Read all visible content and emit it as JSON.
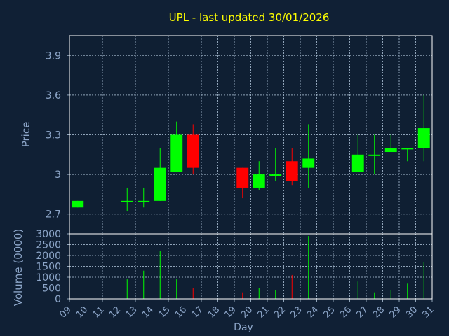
{
  "chart_data": {
    "type": "candlestick",
    "title": "UPL - last updated 30/01/2026",
    "xlabel": "Day",
    "price_panel": {
      "ylabel": "Price",
      "ylim": [
        2.55,
        4.05
      ],
      "y_ticks": [
        "2.7",
        "3",
        "3.3",
        "3.6",
        "3.9"
      ],
      "y_tick_values": [
        2.7,
        3.0,
        3.3,
        3.6,
        3.9
      ]
    },
    "volume_panel": {
      "ylabel": "Volume (0000)",
      "ylim": [
        0,
        3000
      ],
      "y_ticks": [
        "0",
        "500",
        "1000",
        "1500",
        "2000",
        "2500",
        "3000"
      ],
      "y_tick_values": [
        0,
        500,
        1000,
        1500,
        2000,
        2500,
        3000
      ]
    },
    "x_ticks": [
      "09",
      "10",
      "11",
      "12",
      "13",
      "14",
      "15",
      "16",
      "17",
      "18",
      "19",
      "20",
      "21",
      "22",
      "23",
      "24",
      "25",
      "26",
      "27",
      "28",
      "29",
      "30",
      "31"
    ],
    "x_tick_values": [
      9,
      10,
      11,
      12,
      13,
      14,
      15,
      16,
      17,
      18,
      19,
      20,
      21,
      22,
      23,
      24,
      25,
      26,
      27,
      28,
      29,
      30,
      31
    ],
    "x_range": [
      9,
      31
    ],
    "grid": true,
    "candles": [
      {
        "day": 9,
        "open": 2.75,
        "high": 2.8,
        "low": 2.75,
        "close": 2.8,
        "volume": 0
      },
      {
        "day": 12,
        "open": 2.8,
        "high": 2.9,
        "low": 2.72,
        "close": 2.8,
        "volume": 900
      },
      {
        "day": 13,
        "open": 2.8,
        "high": 2.9,
        "low": 2.75,
        "close": 2.8,
        "volume": 1300
      },
      {
        "day": 14,
        "open": 2.8,
        "high": 3.2,
        "low": 2.8,
        "close": 3.05,
        "volume": 2200
      },
      {
        "day": 15,
        "open": 3.02,
        "high": 3.4,
        "low": 3.02,
        "close": 3.3,
        "volume": 900
      },
      {
        "day": 16,
        "open": 3.3,
        "high": 3.38,
        "low": 3.0,
        "close": 3.05,
        "volume": 500
      },
      {
        "day": 19,
        "open": 3.05,
        "high": 3.05,
        "low": 2.82,
        "close": 2.9,
        "volume": 300
      },
      {
        "day": 20,
        "open": 2.9,
        "high": 3.1,
        "low": 2.88,
        "close": 3.0,
        "volume": 500
      },
      {
        "day": 21,
        "open": 2.99,
        "high": 3.2,
        "low": 2.95,
        "close": 3.0,
        "volume": 400
      },
      {
        "day": 22,
        "open": 3.1,
        "high": 3.2,
        "low": 2.92,
        "close": 2.95,
        "volume": 1100
      },
      {
        "day": 23,
        "open": 3.05,
        "high": 3.38,
        "low": 2.9,
        "close": 3.12,
        "volume": 2900
      },
      {
        "day": 26,
        "open": 3.02,
        "high": 3.3,
        "low": 3.02,
        "close": 3.15,
        "volume": 800
      },
      {
        "day": 27,
        "open": 3.14,
        "high": 3.3,
        "low": 3.0,
        "close": 3.15,
        "volume": 300
      },
      {
        "day": 28,
        "open": 3.17,
        "high": 3.3,
        "low": 3.17,
        "close": 3.2,
        "volume": 400
      },
      {
        "day": 29,
        "open": 3.19,
        "high": 3.2,
        "low": 3.1,
        "close": 3.2,
        "volume": 700
      },
      {
        "day": 30,
        "open": 3.2,
        "high": 3.6,
        "low": 3.1,
        "close": 3.35,
        "volume": 1700
      }
    ],
    "colors": {
      "background": "#102035",
      "plot_background": "#0f1f33",
      "grid": "#8fa3b8",
      "axis_text": "#8da6c9",
      "title": "#ffff00",
      "up": "#00ff00",
      "down": "#ff0000",
      "frame": "#ffffff"
    }
  }
}
